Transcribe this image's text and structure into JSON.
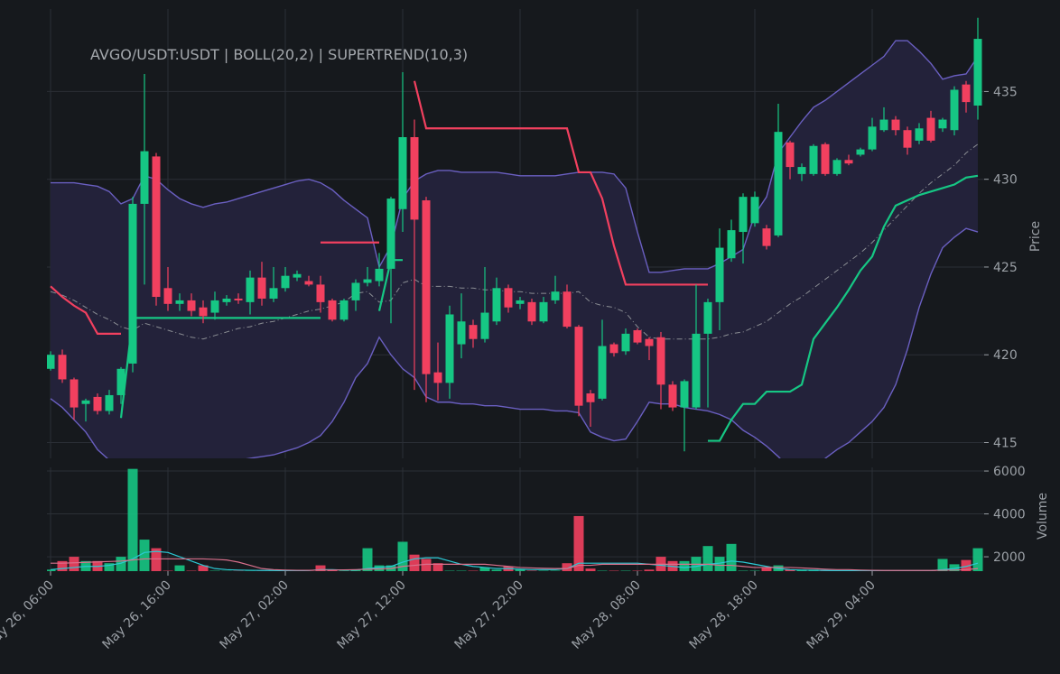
{
  "chart_data": {
    "type": "candlestick",
    "title": "AVGO/USDT:USDT | BOLL(20,2) | SUPERTREND(10,3)",
    "ylabel": "Price",
    "grid": true,
    "up_color": "#16c784",
    "down_color": "#f2405f",
    "x": [
      "May 26, 06:00",
      "May 26, 07:00",
      "May 26, 08:00",
      "May 26, 09:00",
      "May 26, 10:00",
      "May 26, 11:00",
      "May 26, 12:00",
      "May 26, 13:00",
      "May 26, 14:00",
      "May 26, 15:00",
      "May 26, 16:00",
      "May 26, 17:00",
      "May 26, 18:00",
      "May 26, 19:00",
      "May 26, 20:00",
      "May 26, 21:00",
      "May 26, 22:00",
      "May 26, 23:00",
      "May 27, 00:00",
      "May 27, 01:00",
      "May 27, 02:00",
      "May 27, 03:00",
      "May 27, 04:00",
      "May 27, 05:00",
      "May 27, 06:00",
      "May 27, 07:00",
      "May 27, 08:00",
      "May 27, 09:00",
      "May 27, 10:00",
      "May 27, 11:00",
      "May 27, 12:00",
      "May 27, 13:00",
      "May 27, 14:00",
      "May 27, 15:00",
      "May 27, 16:00",
      "May 27, 17:00",
      "May 27, 18:00",
      "May 27, 19:00",
      "May 27, 20:00",
      "May 27, 21:00",
      "May 27, 22:00",
      "May 27, 23:00",
      "May 28, 00:00",
      "May 28, 01:00",
      "May 28, 02:00",
      "May 28, 03:00",
      "May 28, 04:00",
      "May 28, 05:00",
      "May 28, 06:00",
      "May 28, 07:00",
      "May 28, 08:00",
      "May 28, 09:00",
      "May 28, 10:00",
      "May 28, 11:00",
      "May 28, 12:00",
      "May 28, 13:00",
      "May 28, 14:00",
      "May 28, 15:00",
      "May 28, 16:00",
      "May 28, 17:00",
      "May 28, 18:00",
      "May 28, 19:00",
      "May 28, 20:00",
      "May 28, 21:00",
      "May 28, 22:00",
      "May 28, 23:00",
      "May 29, 00:00",
      "May 29, 01:00",
      "May 29, 02:00",
      "May 29, 03:00",
      "May 29, 04:00",
      "May 29, 05:00",
      "May 29, 06:00",
      "May 29, 07:00",
      "May 29, 08:00",
      "May 29, 09:00",
      "May 29, 10:00",
      "May 29, 11:00",
      "May 29, 12:00",
      "May 29, 13:00"
    ],
    "xticks": [
      "May 26, 06:00",
      "May 26, 16:00",
      "May 27, 02:00",
      "May 27, 12:00",
      "May 27, 22:00",
      "May 28, 08:00",
      "May 28, 18:00",
      "May 29, 04:00"
    ],
    "open": [
      419.2,
      420.0,
      418.6,
      417.2,
      417.6,
      416.8,
      417.7,
      419.5,
      428.6,
      431.3,
      423.8,
      422.9,
      423.1,
      422.7,
      422.4,
      423.0,
      423.2,
      423.0,
      424.4,
      423.2,
      423.8,
      424.4,
      424.2,
      424.0,
      423.1,
      422.0,
      423.1,
      424.1,
      424.2,
      424.9,
      428.3,
      432.4,
      428.8,
      419.0,
      418.4,
      420.6,
      421.7,
      420.9,
      421.9,
      423.8,
      422.9,
      423.0,
      421.9,
      423.1,
      423.6,
      421.6,
      417.8,
      417.5,
      420.6,
      420.2,
      421.4,
      420.9,
      421.0,
      418.3,
      417.0,
      417.0,
      421.2,
      423.0,
      425.5,
      427.0,
      427.5,
      427.2,
      426.8,
      432.1,
      430.3,
      430.3,
      432.0,
      430.3,
      431.1,
      431.4,
      431.7,
      432.8,
      433.4,
      432.8,
      432.2,
      433.5,
      432.9,
      432.8,
      435.4,
      434.2
    ],
    "high": [
      420.2,
      420.3,
      418.7,
      417.5,
      417.8,
      418.0,
      419.3,
      429.0,
      436.0,
      431.5,
      425.0,
      423.5,
      423.5,
      423.1,
      423.6,
      423.4,
      423.5,
      424.8,
      425.3,
      425.0,
      425.0,
      424.8,
      424.5,
      424.5,
      423.2,
      423.2,
      424.3,
      425.0,
      425.8,
      429.0,
      436.1,
      433.4,
      429.0,
      420.7,
      422.8,
      423.5,
      422.0,
      425.0,
      424.4,
      424.0,
      423.3,
      423.2,
      423.3,
      424.5,
      424.0,
      421.7,
      418.0,
      422.0,
      420.7,
      421.5,
      421.5,
      421.0,
      421.3,
      418.5,
      418.6,
      424.0,
      423.2,
      427.2,
      427.7,
      429.2,
      429.3,
      427.4,
      434.3,
      432.2,
      430.9,
      432.0,
      432.1,
      431.2,
      431.4,
      431.8,
      433.5,
      434.1,
      433.6,
      433.0,
      433.2,
      433.9,
      433.5,
      435.3,
      435.6,
      439.2
    ],
    "low": [
      419.1,
      418.4,
      416.3,
      416.2,
      416.6,
      416.6,
      417.2,
      419.0,
      424.0,
      422.8,
      422.5,
      422.5,
      422.2,
      421.8,
      422.0,
      422.8,
      422.9,
      422.3,
      422.8,
      423.0,
      423.6,
      424.2,
      423.9,
      422.4,
      421.9,
      421.9,
      422.5,
      423.9,
      423.9,
      421.8,
      427.0,
      418.0,
      417.3,
      417.4,
      417.5,
      419.8,
      420.4,
      420.7,
      421.7,
      422.4,
      422.6,
      421.7,
      421.8,
      422.9,
      421.5,
      416.5,
      415.9,
      417.4,
      419.9,
      420.0,
      420.6,
      419.7,
      416.9,
      416.8,
      414.5,
      416.9,
      417.0,
      421.4,
      425.3,
      425.2,
      427.3,
      426.0,
      426.7,
      430.0,
      429.9,
      430.2,
      430.2,
      430.2,
      430.8,
      431.3,
      431.6,
      432.7,
      432.5,
      431.4,
      432.0,
      432.1,
      432.7,
      432.5,
      433.8,
      433.4
    ],
    "close": [
      420.0,
      418.6,
      417.0,
      417.4,
      416.8,
      417.7,
      419.2,
      428.6,
      431.6,
      423.3,
      422.9,
      423.1,
      422.5,
      422.2,
      423.1,
      423.2,
      423.1,
      424.4,
      423.2,
      423.8,
      424.5,
      424.6,
      424.0,
      423.0,
      422.0,
      423.1,
      424.1,
      424.3,
      424.9,
      428.9,
      432.4,
      427.7,
      418.9,
      418.4,
      422.3,
      421.9,
      420.9,
      422.4,
      423.8,
      422.7,
      423.1,
      421.9,
      423.0,
      423.6,
      421.6,
      417.1,
      417.3,
      420.5,
      420.1,
      421.2,
      420.7,
      420.5,
      418.3,
      417.0,
      418.5,
      421.2,
      423.0,
      426.1,
      427.1,
      429.0,
      429.0,
      426.2,
      432.7,
      430.7,
      430.7,
      431.9,
      430.3,
      431.1,
      430.9,
      431.7,
      433.0,
      433.4,
      432.8,
      431.8,
      432.9,
      432.2,
      433.4,
      435.1,
      434.4,
      438.0
    ],
    "ylim": [
      414.1,
      439.7
    ],
    "yticks": [
      415,
      420,
      425,
      430,
      435
    ],
    "bollinger": {
      "color": "#6a5fc1",
      "fill": "#23223a",
      "middle_color": "#8a8d93",
      "upper": [
        429.8,
        429.8,
        429.8,
        429.7,
        429.6,
        429.3,
        428.6,
        428.9,
        430.2,
        430.0,
        429.4,
        428.9,
        428.6,
        428.4,
        428.6,
        428.7,
        428.9,
        429.1,
        429.3,
        429.5,
        429.7,
        429.9,
        430.0,
        429.8,
        429.4,
        428.8,
        428.3,
        427.8,
        425.0,
        426.2,
        428.9,
        429.9,
        430.3,
        430.5,
        430.5,
        430.4,
        430.4,
        430.4,
        430.4,
        430.3,
        430.2,
        430.2,
        430.2,
        430.2,
        430.3,
        430.4,
        430.4,
        430.4,
        430.3,
        429.5,
        427.0,
        424.7,
        424.7,
        424.8,
        424.9,
        424.9,
        424.9,
        425.2,
        425.6,
        426.0,
        428.0,
        429.0,
        431.5,
        432.4,
        433.3,
        434.1,
        434.5,
        435.0,
        435.5,
        436.0,
        436.5,
        437.0,
        437.9,
        437.9,
        437.3,
        436.6,
        435.7,
        435.9,
        436.0,
        437.0
      ],
      "middle": [
        423.6,
        423.4,
        423.1,
        422.7,
        422.3,
        422.0,
        421.6,
        421.4,
        421.8,
        421.6,
        421.4,
        421.2,
        421.0,
        420.9,
        421.1,
        421.3,
        421.5,
        421.6,
        421.8,
        421.9,
        422.1,
        422.3,
        422.5,
        422.6,
        422.8,
        423.0,
        423.5,
        423.6,
        423.0,
        423.1,
        424.1,
        424.3,
        423.9,
        423.9,
        423.9,
        423.8,
        423.8,
        423.7,
        423.7,
        423.6,
        423.6,
        423.5,
        423.5,
        423.5,
        423.5,
        423.6,
        423.0,
        422.8,
        422.7,
        422.4,
        421.6,
        421.0,
        420.9,
        420.9,
        420.9,
        420.9,
        420.9,
        421.0,
        421.2,
        421.3,
        421.6,
        421.9,
        422.4,
        422.9,
        423.3,
        423.8,
        424.3,
        424.8,
        425.3,
        425.8,
        426.4,
        427.1,
        427.8,
        428.5,
        429.2,
        429.8,
        430.3,
        430.8,
        431.5,
        432.0
      ],
      "lower": [
        417.5,
        417.0,
        416.3,
        415.6,
        414.6,
        414.0,
        413.6,
        413.4,
        413.3,
        413.3,
        413.3,
        413.3,
        413.3,
        413.4,
        413.6,
        413.8,
        414.0,
        414.1,
        414.2,
        414.3,
        414.5,
        414.7,
        415.0,
        415.4,
        416.2,
        417.3,
        418.7,
        419.5,
        421.0,
        420.0,
        419.2,
        418.7,
        417.6,
        417.3,
        417.3,
        417.2,
        417.2,
        417.1,
        417.1,
        417.0,
        416.9,
        416.9,
        416.9,
        416.8,
        416.8,
        416.7,
        415.6,
        415.3,
        415.1,
        415.2,
        416.2,
        417.3,
        417.2,
        417.2,
        417.0,
        416.9,
        416.8,
        416.6,
        416.3,
        415.7,
        415.3,
        414.8,
        414.2,
        413.5,
        413.3,
        413.5,
        414.1,
        414.6,
        415.0,
        415.6,
        416.2,
        417.0,
        418.3,
        420.3,
        422.7,
        424.6,
        426.1,
        426.7,
        427.2,
        427.0
      ]
    },
    "supertrend": [
      {
        "color": "#16c784",
        "values": [
          null,
          null,
          null,
          null,
          null,
          null,
          416.4,
          422.1,
          422.1,
          422.1,
          422.1,
          422.1,
          422.1,
          422.1,
          422.1,
          422.1,
          422.1,
          422.1,
          422.1,
          422.1,
          422.1,
          422.1,
          422.1,
          422.1,
          null,
          null,
          null,
          null,
          422.5,
          425.4,
          425.4,
          null,
          null,
          null,
          null,
          null,
          null,
          null,
          null,
          null,
          null,
          null,
          null,
          null,
          null,
          null,
          null,
          null,
          null,
          null,
          null,
          null,
          null,
          null,
          null,
          null,
          415.1,
          415.1,
          416.3,
          417.2,
          417.2,
          417.9,
          417.9,
          417.9,
          418.3,
          420.9,
          421.8,
          422.7,
          423.7,
          424.8,
          425.6,
          427.3,
          428.5,
          428.8,
          429.1,
          429.3,
          429.5,
          429.7,
          430.1,
          430.2
        ]
      },
      {
        "color": "#f2405f",
        "values": [
          423.9,
          423.3,
          422.8,
          422.4,
          421.2,
          421.2,
          421.2,
          null,
          null,
          null,
          null,
          null,
          null,
          null,
          null,
          null,
          null,
          null,
          null,
          null,
          null,
          null,
          null,
          426.4,
          426.4,
          426.4,
          426.4,
          426.4,
          426.4,
          null,
          null,
          435.6,
          432.9,
          432.9,
          432.9,
          432.9,
          432.9,
          432.9,
          432.9,
          432.9,
          432.9,
          432.9,
          432.9,
          432.9,
          432.9,
          430.4,
          430.4,
          428.9,
          426.2,
          424.0,
          424.0,
          424.0,
          424.0,
          424.0,
          424.0,
          424.0,
          424.0,
          null,
          null,
          null,
          null,
          null,
          null,
          null,
          null,
          null,
          null,
          null,
          null,
          null,
          null,
          null,
          null,
          null,
          null,
          null,
          null,
          null,
          null,
          null
        ]
      }
    ],
    "volume": {
      "ylabel": "Volume",
      "ylim": [
        1330,
        6170
      ],
      "yticks": [
        2000,
        4000,
        6000
      ],
      "values": [
        1400,
        1800,
        2000,
        1800,
        1800,
        1700,
        2000,
        6100,
        2800,
        2400,
        1350,
        1600,
        1350,
        1600,
        1350,
        1340,
        1340,
        1340,
        1340,
        1340,
        1340,
        1340,
        1340,
        1600,
        1400,
        1350,
        1400,
        2400,
        1600,
        1600,
        2700,
        2100,
        1900,
        1700,
        1350,
        1350,
        1350,
        1500,
        1400,
        1550,
        1400,
        1350,
        1350,
        1350,
        1700,
        3900,
        1450,
        1350,
        1350,
        1350,
        1350,
        1400,
        2000,
        1800,
        1800,
        2000,
        2500,
        2000,
        2600,
        1350,
        1350,
        1500,
        1600,
        1400,
        1400,
        1400,
        1350,
        1350,
        1350,
        1350,
        1350,
        1350,
        1350,
        1350,
        1350,
        1350,
        1900,
        1650,
        1850,
        2400
      ],
      "series": [
        {
          "color": "#2bc9d4",
          "values": [
            1400,
            1450,
            1500,
            1550,
            1550,
            1600,
            1700,
            1900,
            2200,
            2250,
            2200,
            2000,
            1800,
            1600,
            1450,
            1400,
            1380,
            1370,
            1360,
            1360,
            1350,
            1350,
            1360,
            1400,
            1400,
            1380,
            1380,
            1450,
            1500,
            1550,
            1750,
            1900,
            1950,
            1950,
            1800,
            1650,
            1550,
            1500,
            1450,
            1450,
            1420,
            1400,
            1400,
            1400,
            1450,
            1700,
            1700,
            1700,
            1700,
            1700,
            1700,
            1650,
            1600,
            1550,
            1500,
            1550,
            1650,
            1700,
            1800,
            1750,
            1650,
            1550,
            1450,
            1400,
            1380,
            1370,
            1360,
            1350,
            1350,
            1350,
            1350,
            1350,
            1350,
            1350,
            1350,
            1350,
            1400,
            1450,
            1550,
            1700
          ]
        },
        {
          "color": "#d9708c",
          "values": [
            1700,
            1700,
            1720,
            1740,
            1760,
            1780,
            1800,
            1850,
            1900,
            1900,
            1900,
            1900,
            1900,
            1900,
            1880,
            1850,
            1750,
            1600,
            1450,
            1400,
            1380,
            1370,
            1370,
            1380,
            1380,
            1390,
            1400,
            1420,
            1430,
            1450,
            1550,
            1600,
            1650,
            1650,
            1650,
            1650,
            1650,
            1650,
            1600,
            1550,
            1500,
            1480,
            1460,
            1450,
            1450,
            1600,
            1600,
            1650,
            1650,
            1650,
            1650,
            1650,
            1650,
            1650,
            1650,
            1650,
            1650,
            1600,
            1600,
            1550,
            1500,
            1500,
            1500,
            1500,
            1480,
            1450,
            1420,
            1400,
            1400,
            1380,
            1370,
            1360,
            1360,
            1360,
            1360,
            1360,
            1370,
            1380,
            1400,
            1450
          ]
        }
      ]
    }
  }
}
